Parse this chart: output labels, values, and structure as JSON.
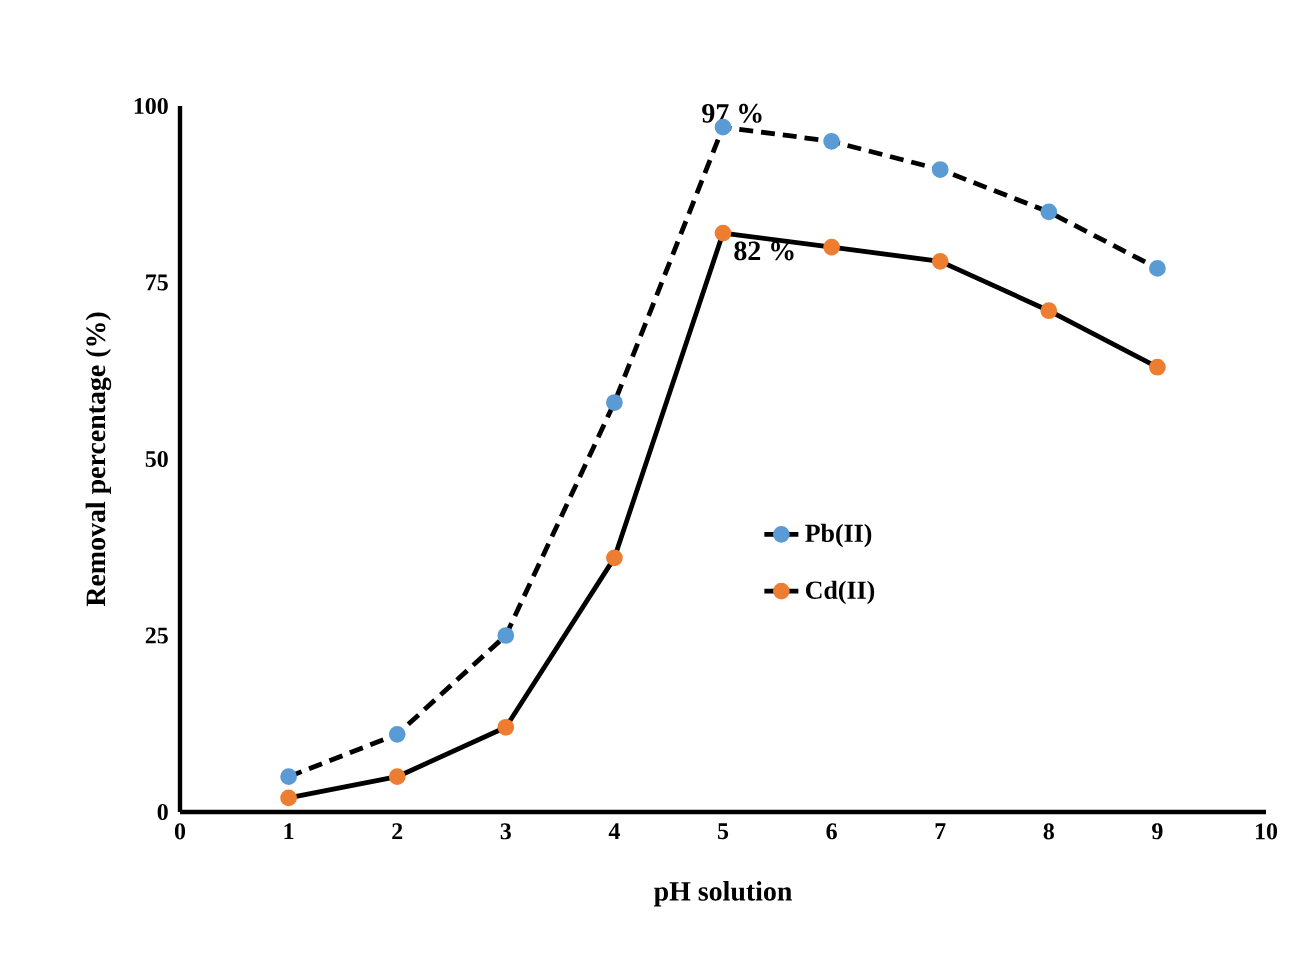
{
  "chart_data": {
    "type": "line",
    "xlabel": "pH solution",
    "ylabel": "Removal percentage (%)",
    "x": [
      1,
      2,
      3,
      4,
      5,
      6,
      7,
      8,
      9
    ],
    "series": [
      {
        "name": "Pb(II)",
        "color": "#5b9bd5",
        "line_style": "dashed",
        "values": [
          5,
          11,
          25,
          58,
          97,
          95,
          91,
          85,
          77
        ]
      },
      {
        "name": "Cd(II)",
        "color": "#ed7d31",
        "line_style": "solid",
        "values": [
          2,
          5,
          12,
          36,
          82,
          80,
          78,
          71,
          63
        ]
      }
    ],
    "xlim": [
      0,
      10
    ],
    "xticks": [
      0,
      1,
      2,
      3,
      4,
      5,
      6,
      7,
      8,
      9,
      10
    ],
    "ylim": [
      0,
      100
    ],
    "yticks": [
      0,
      25,
      50,
      75,
      100
    ],
    "annotations": [
      {
        "text": "97 %",
        "x": 5,
        "y": 97
      },
      {
        "text": "82 %",
        "x": 5,
        "y": 82
      }
    ],
    "marker": "circle",
    "legend": "right",
    "grid": false
  }
}
